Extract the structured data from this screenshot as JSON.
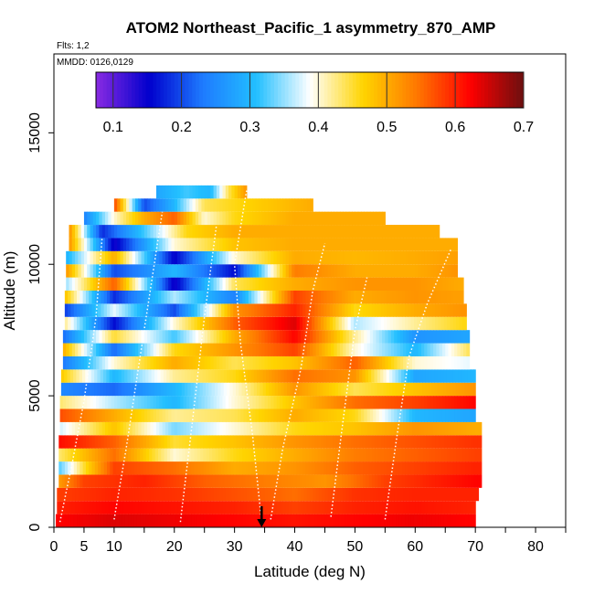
{
  "chart_data": {
    "type": "heatmap",
    "title": "ATOM2 Northeast_Pacific_1 asymmetry_870_AMP",
    "flights_label": "Flts: 1,2",
    "date_label": "MMDD: 0126,0129",
    "xlabel": "Latitude (deg N)",
    "ylabel": "Altitude (m)",
    "xlim": [
      0,
      85
    ],
    "ylim": [
      0,
      18000
    ],
    "x_ticks": [
      0,
      5,
      10,
      20,
      30,
      40,
      50,
      60,
      70,
      80
    ],
    "x_minor_ticks": [
      15,
      25,
      35,
      45,
      55,
      65,
      75,
      85
    ],
    "y_ticks": [
      0,
      5000,
      10000,
      15000
    ],
    "colorbar": {
      "range": [
        0.075,
        0.7
      ],
      "ticks": [
        0.1,
        0.2,
        0.3,
        0.4,
        0.5,
        0.6,
        0.7
      ],
      "colors": [
        "#8a2be2",
        "#0000cd",
        "#1e7bff",
        "#22bfff",
        "#ffffff",
        "#ffd400",
        "#ff7800",
        "#ff0000",
        "#6b0f0f"
      ]
    },
    "marker": {
      "x": 34.5,
      "label": "arrow"
    },
    "rows": [
      {
        "y0": 0,
        "y1": 500,
        "x0": 0.3,
        "x1": 70.0,
        "value_by_lat": [
          [
            0,
            0.62
          ],
          [
            10,
            0.64
          ],
          [
            20,
            0.63
          ],
          [
            30,
            0.62
          ],
          [
            40,
            0.61
          ],
          [
            50,
            0.62
          ],
          [
            60,
            0.63
          ],
          [
            70,
            0.62
          ]
        ]
      },
      {
        "y0": 500,
        "y1": 1000,
        "x0": 0.5,
        "x1": 70.0,
        "value_by_lat": [
          [
            0,
            0.6
          ],
          [
            10,
            0.62
          ],
          [
            20,
            0.61
          ],
          [
            30,
            0.6
          ],
          [
            40,
            0.58
          ],
          [
            50,
            0.6
          ],
          [
            60,
            0.61
          ],
          [
            70,
            0.6
          ]
        ]
      },
      {
        "y0": 1000,
        "y1": 1500,
        "x0": 0.5,
        "x1": 70.5,
        "value_by_lat": [
          [
            0,
            0.58
          ],
          [
            10,
            0.6
          ],
          [
            20,
            0.59
          ],
          [
            30,
            0.57
          ],
          [
            40,
            0.55
          ],
          [
            50,
            0.59
          ],
          [
            60,
            0.6
          ],
          [
            70,
            0.6
          ]
        ]
      },
      {
        "y0": 1500,
        "y1": 2000,
        "x0": 0.8,
        "x1": 71.0,
        "value_by_lat": [
          [
            0,
            0.5
          ],
          [
            5,
            0.58
          ],
          [
            15,
            0.6
          ],
          [
            25,
            0.56
          ],
          [
            35,
            0.54
          ],
          [
            45,
            0.52
          ],
          [
            55,
            0.58
          ],
          [
            70,
            0.62
          ]
        ]
      },
      {
        "y0": 2000,
        "y1": 2500,
        "x0": 0.8,
        "x1": 71.0,
        "value_by_lat": [
          [
            0,
            0.3
          ],
          [
            5,
            0.45
          ],
          [
            10,
            0.58
          ],
          [
            20,
            0.55
          ],
          [
            30,
            0.5
          ],
          [
            40,
            0.52
          ],
          [
            50,
            0.56
          ],
          [
            60,
            0.58
          ],
          [
            70,
            0.6
          ]
        ]
      },
      {
        "y0": 2500,
        "y1": 3000,
        "x0": 0.8,
        "x1": 71.0,
        "value_by_lat": [
          [
            0,
            0.42
          ],
          [
            10,
            0.55
          ],
          [
            20,
            0.4
          ],
          [
            30,
            0.46
          ],
          [
            40,
            0.5
          ],
          [
            50,
            0.54
          ],
          [
            60,
            0.56
          ],
          [
            70,
            0.58
          ]
        ]
      },
      {
        "y0": 3000,
        "y1": 3500,
        "x0": 0.8,
        "x1": 71.0,
        "value_by_lat": [
          [
            0,
            0.62
          ],
          [
            10,
            0.56
          ],
          [
            20,
            0.45
          ],
          [
            30,
            0.48
          ],
          [
            40,
            0.52
          ],
          [
            50,
            0.55
          ],
          [
            60,
            0.57
          ],
          [
            70,
            0.59
          ]
        ]
      },
      {
        "y0": 3500,
        "y1": 4000,
        "x0": 1.0,
        "x1": 71.0,
        "value_by_lat": [
          [
            0,
            0.36
          ],
          [
            10,
            0.48
          ],
          [
            20,
            0.34
          ],
          [
            30,
            0.4
          ],
          [
            40,
            0.46
          ],
          [
            50,
            0.48
          ],
          [
            60,
            0.52
          ],
          [
            70,
            0.5
          ]
        ]
      },
      {
        "y0": 4000,
        "y1": 4500,
        "x0": 1.0,
        "x1": 70.0,
        "value_by_lat": [
          [
            0,
            0.58
          ],
          [
            10,
            0.5
          ],
          [
            20,
            0.42
          ],
          [
            30,
            0.44
          ],
          [
            40,
            0.5
          ],
          [
            50,
            0.46
          ],
          [
            60,
            0.3
          ],
          [
            70,
            0.28
          ]
        ]
      },
      {
        "y0": 4500,
        "y1": 5000,
        "x0": 1.0,
        "x1": 70.0,
        "value_by_lat": [
          [
            0,
            0.44
          ],
          [
            10,
            0.36
          ],
          [
            20,
            0.3
          ],
          [
            30,
            0.4
          ],
          [
            40,
            0.48
          ],
          [
            50,
            0.55
          ],
          [
            60,
            0.58
          ],
          [
            70,
            0.62
          ]
        ]
      },
      {
        "y0": 5000,
        "y1": 5500,
        "x0": 1.2,
        "x1": 70.0,
        "value_by_lat": [
          [
            0,
            0.25
          ],
          [
            10,
            0.22
          ],
          [
            20,
            0.3
          ],
          [
            30,
            0.4
          ],
          [
            40,
            0.52
          ],
          [
            50,
            0.44
          ],
          [
            60,
            0.48
          ],
          [
            70,
            0.52
          ]
        ]
      },
      {
        "y0": 5500,
        "y1": 6000,
        "x0": 1.2,
        "x1": 70.0,
        "value_by_lat": [
          [
            0,
            0.5
          ],
          [
            10,
            0.3
          ],
          [
            20,
            0.42
          ],
          [
            30,
            0.46
          ],
          [
            40,
            0.55
          ],
          [
            50,
            0.52
          ],
          [
            60,
            0.28
          ],
          [
            70,
            0.3
          ]
        ]
      },
      {
        "y0": 6000,
        "y1": 6500,
        "x0": 1.5,
        "x1": 69.0,
        "value_by_lat": [
          [
            0,
            0.2
          ],
          [
            10,
            0.4
          ],
          [
            20,
            0.5
          ],
          [
            30,
            0.44
          ],
          [
            40,
            0.48
          ],
          [
            50,
            0.56
          ],
          [
            60,
            0.4
          ],
          [
            69,
            0.38
          ]
        ]
      },
      {
        "y0": 6500,
        "y1": 7000,
        "x0": 1.5,
        "x1": 69.0,
        "value_by_lat": [
          [
            0,
            0.55
          ],
          [
            10,
            0.22
          ],
          [
            20,
            0.46
          ],
          [
            30,
            0.52
          ],
          [
            40,
            0.58
          ],
          [
            50,
            0.4
          ],
          [
            60,
            0.3
          ],
          [
            69,
            0.44
          ]
        ]
      },
      {
        "y0": 7000,
        "y1": 7500,
        "x0": 1.5,
        "x1": 69.0,
        "value_by_lat": [
          [
            0,
            0.18
          ],
          [
            10,
            0.45
          ],
          [
            20,
            0.32
          ],
          [
            30,
            0.5
          ],
          [
            40,
            0.62
          ],
          [
            50,
            0.42
          ],
          [
            60,
            0.26
          ],
          [
            69,
            0.28
          ]
        ]
      },
      {
        "y0": 7500,
        "y1": 8000,
        "x0": 1.8,
        "x1": 68.5,
        "value_by_lat": [
          [
            0,
            0.48
          ],
          [
            10,
            0.16
          ],
          [
            20,
            0.4
          ],
          [
            30,
            0.56
          ],
          [
            40,
            0.64
          ],
          [
            50,
            0.36
          ],
          [
            60,
            0.42
          ],
          [
            68,
            0.46
          ]
        ]
      },
      {
        "y0": 8000,
        "y1": 8500,
        "x0": 1.8,
        "x1": 68.5,
        "value_by_lat": [
          [
            0,
            0.15
          ],
          [
            10,
            0.38
          ],
          [
            20,
            0.2
          ],
          [
            30,
            0.52
          ],
          [
            40,
            0.6
          ],
          [
            50,
            0.46
          ],
          [
            60,
            0.5
          ],
          [
            68,
            0.52
          ]
        ]
      },
      {
        "y0": 8500,
        "y1": 9000,
        "x0": 1.8,
        "x1": 68.0,
        "value_by_lat": [
          [
            0,
            0.55
          ],
          [
            10,
            0.18
          ],
          [
            20,
            0.36
          ],
          [
            30,
            0.24
          ],
          [
            40,
            0.58
          ],
          [
            50,
            0.5
          ],
          [
            60,
            0.52
          ],
          [
            68,
            0.51
          ]
        ]
      },
      {
        "y0": 9000,
        "y1": 9500,
        "x0": 2.0,
        "x1": 68.0,
        "value_by_lat": [
          [
            0,
            0.3
          ],
          [
            10,
            0.56
          ],
          [
            20,
            0.14
          ],
          [
            30,
            0.44
          ],
          [
            40,
            0.5
          ],
          [
            50,
            0.52
          ],
          [
            60,
            0.52
          ],
          [
            68,
            0.5
          ]
        ]
      },
      {
        "y0": 9500,
        "y1": 10000,
        "x0": 2.0,
        "x1": 67.0,
        "value_by_lat": [
          [
            0,
            0.6
          ],
          [
            10,
            0.2
          ],
          [
            20,
            0.3
          ],
          [
            30,
            0.16
          ],
          [
            40,
            0.54
          ],
          [
            50,
            0.5
          ],
          [
            60,
            0.5
          ],
          [
            67,
            0.52
          ]
        ]
      },
      {
        "y0": 10000,
        "y1": 10500,
        "x0": 2.0,
        "x1": 67.0,
        "value_by_lat": [
          [
            0,
            0.24
          ],
          [
            10,
            0.5
          ],
          [
            20,
            0.15
          ],
          [
            30,
            0.4
          ],
          [
            40,
            0.5
          ],
          [
            50,
            0.49
          ],
          [
            60,
            0.5
          ],
          [
            67,
            0.51
          ]
        ]
      },
      {
        "y0": 10500,
        "y1": 11000,
        "x0": 2.5,
        "x1": 67.0,
        "value_by_lat": [
          [
            2,
            0.55
          ],
          [
            10,
            0.14
          ],
          [
            20,
            0.4
          ],
          [
            30,
            0.48
          ],
          [
            40,
            0.5
          ],
          [
            50,
            0.5
          ],
          [
            60,
            0.5
          ],
          [
            67,
            0.5
          ]
        ]
      },
      {
        "y0": 11000,
        "y1": 11500,
        "x0": 2.5,
        "x1": 64.0,
        "value_by_lat": [
          [
            2,
            0.56
          ],
          [
            8,
            0.18
          ],
          [
            15,
            0.32
          ],
          [
            22,
            0.46
          ],
          [
            30,
            0.5
          ],
          [
            40,
            0.5
          ],
          [
            50,
            0.5
          ],
          [
            64,
            0.5
          ]
        ]
      },
      {
        "y0": 11500,
        "y1": 12000,
        "x0": 5.0,
        "x1": 55.0,
        "value_by_lat": [
          [
            5,
            0.24
          ],
          [
            10,
            0.4
          ],
          [
            15,
            0.5
          ],
          [
            20,
            0.56
          ],
          [
            25,
            0.4
          ],
          [
            30,
            0.46
          ],
          [
            40,
            0.5
          ],
          [
            55,
            0.5
          ]
        ]
      },
      {
        "y0": 12000,
        "y1": 12500,
        "x0": 10.0,
        "x1": 43.0,
        "value_by_lat": [
          [
            10,
            0.58
          ],
          [
            15,
            0.2
          ],
          [
            20,
            0.3
          ],
          [
            25,
            0.44
          ],
          [
            30,
            0.46
          ],
          [
            43,
            0.5
          ]
        ]
      },
      {
        "y0": 12500,
        "y1": 13000,
        "x0": 17.0,
        "x1": 32.0,
        "value_by_lat": [
          [
            17,
            0.28
          ],
          [
            22,
            0.32
          ],
          [
            26,
            0.3
          ],
          [
            29,
            0.44
          ],
          [
            32,
            0.52
          ]
        ]
      }
    ]
  }
}
